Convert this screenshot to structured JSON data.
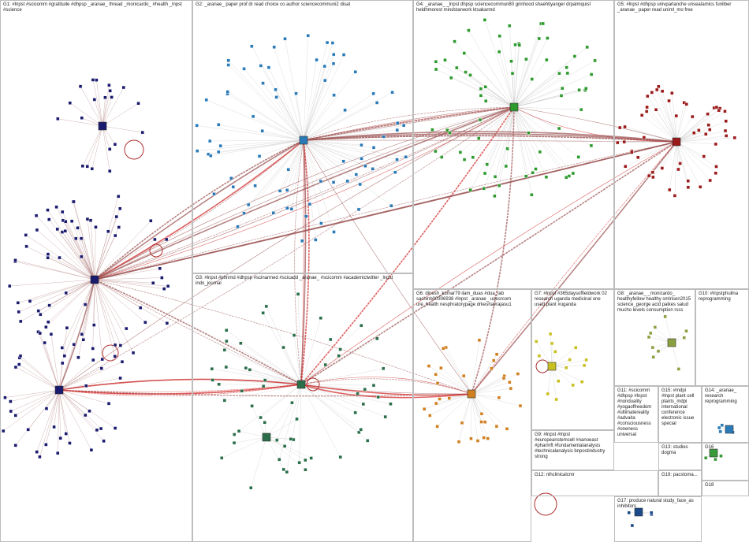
{
  "groups": [
    {
      "label": "G1: #lnpst #scicomm #gratitude #dhpsp _aranae_ thread _monicardo_ #health _lnpst #science"
    },
    {
      "label": "G2: _aranae_ paper prof dr read choice co author sciencecommuni2 disat"
    },
    {
      "label": "G3: #lnpst #phnmd #dhpsp #scinarmed #scicadd _aranae_ #scicomm #academictwitter _lnpst indo_journal"
    },
    {
      "label": "G4: _aranae_ _lnpst dhpsp sciencecommun80 grinhood shaehtiyanger drpalmquist heldhmorest mindstarwork ktsakarmd"
    },
    {
      "label": "G5: #lnpst #dhpsp univparlanche unseatamics funliber _aranae_ paper read uniml_mo free"
    },
    {
      "label": "G6: dinesh_kumar79 ilam_duas #dua_lab sachinb00306938 #lnpst _aranae_ uoesrcom ure_health nesphratorypage drkeshavrajasu1"
    },
    {
      "label": "G7: #lnpst #365daysoffieldwork 02 research uganda medicinal one used plant #uganda"
    },
    {
      "label": "G8: _aranae_ _monicardo_ healthyfellow healthy smlrisen2015 science_george acid palkes salud mucho levels consumption rsss"
    },
    {
      "label": "G9: #lnpst #lnpst #europeanstemcell #nanoeast #pharmft #fundamentalanalysis #technicalanalysis bnpostindustry strong"
    },
    {
      "label": "G10: #lnpstphullna reprogramming"
    },
    {
      "label": "G11: #scicomm #dhpsp #lnpst #nonduality #yogaoffreedom #ultimatereality #advaita #consciousness #oneness universal"
    },
    {
      "label": "G12: nlhclinicalcmr"
    },
    {
      "label": "G13: studies dogma"
    },
    {
      "label": "G14: _aranae_ research reprogramming"
    },
    {
      "label": "G15: #mdpi #lnpst plant cell plants_mdpi international conference electronic issue special"
    },
    {
      "label": "G16"
    },
    {
      "label": "G17: produce natural study_face_as inhibitors"
    },
    {
      "label": "G18"
    },
    {
      "label": "G19: pacstoma..."
    }
  ]
}
